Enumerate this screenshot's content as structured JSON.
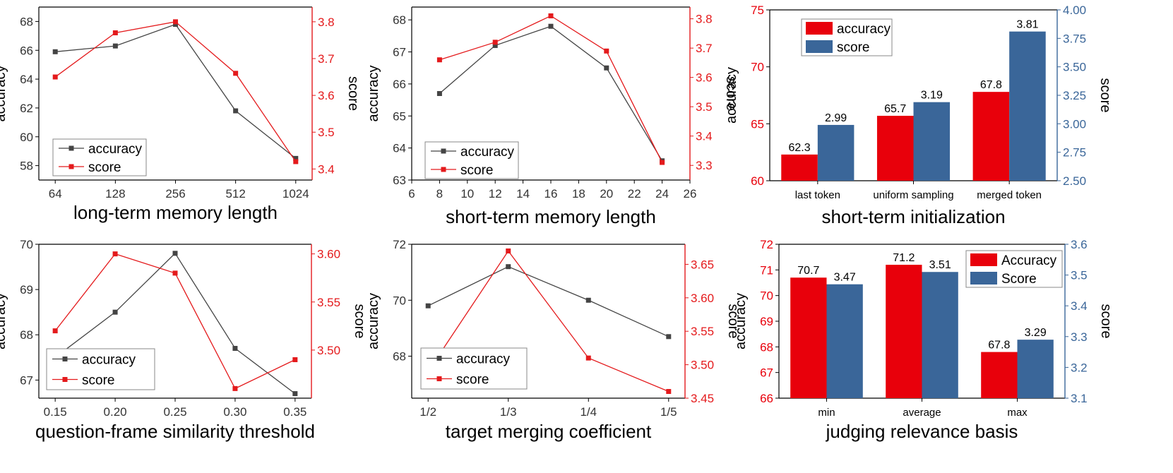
{
  "colors": {
    "accuracy_line": "#444444",
    "score_line": "#e41a1c",
    "accuracy_bar": "#e8000b",
    "score_bar": "#3a6699",
    "score_axis_red": "#e41a1c",
    "score_axis_blue": "#3a6699"
  },
  "chart_data": [
    {
      "type": "line",
      "xlabel": "long-term memory length",
      "ylabel": "accuracy",
      "y2label": "score",
      "x": [
        "64",
        "128",
        "256",
        "512",
        "1024"
      ],
      "ylim": [
        57,
        69
      ],
      "yticks": [
        58,
        60,
        62,
        64,
        66,
        68
      ],
      "y2lim": [
        3.37,
        3.84
      ],
      "y2ticks": [
        3.4,
        3.5,
        3.6,
        3.7,
        3.8
      ],
      "y2_decimals": 1,
      "series": [
        {
          "name": "accuracy",
          "axis": "left",
          "values": [
            65.9,
            66.3,
            67.8,
            61.8,
            58.5
          ]
        },
        {
          "name": "score",
          "axis": "right",
          "values": [
            3.65,
            3.77,
            3.8,
            3.66,
            3.42
          ]
        }
      ],
      "legend": "bottom-left",
      "score_axis_color": "red"
    },
    {
      "type": "line",
      "xlabel": "short-term memory length",
      "ylabel": "accuracy",
      "y2label": "score",
      "x": [
        8,
        12,
        16,
        20,
        24
      ],
      "xlim": [
        6,
        26
      ],
      "xticks": [
        6,
        8,
        10,
        12,
        14,
        16,
        18,
        20,
        22,
        24,
        26
      ],
      "ylim": [
        63,
        68.4
      ],
      "yticks": [
        63,
        64,
        65,
        66,
        67,
        68
      ],
      "y2lim": [
        3.25,
        3.84
      ],
      "y2ticks": [
        3.3,
        3.4,
        3.5,
        3.6,
        3.7,
        3.8
      ],
      "y2_decimals": 1,
      "series": [
        {
          "name": "accuracy",
          "axis": "left",
          "values": [
            65.7,
            67.2,
            67.8,
            66.5,
            63.6
          ]
        },
        {
          "name": "score",
          "axis": "right",
          "values": [
            3.66,
            3.72,
            3.81,
            3.69,
            3.31
          ]
        }
      ],
      "legend": "bottom-left",
      "score_axis_color": "red"
    },
    {
      "type": "bar",
      "xlabel": "short-term initialization",
      "ylabel": "accuracy",
      "y2label": "score",
      "categories": [
        "last token",
        "uniform sampling",
        "merged token"
      ],
      "ylim": [
        60,
        75
      ],
      "yticks": [
        60,
        65,
        70,
        75
      ],
      "y2lim": [
        2.5,
        4.0
      ],
      "y2ticks": [
        2.5,
        2.75,
        3.0,
        3.25,
        3.5,
        3.75,
        4.0
      ],
      "y2_decimals": 2,
      "series": [
        {
          "name": "accuracy",
          "axis": "left",
          "values": [
            62.3,
            65.7,
            67.8
          ],
          "labels": [
            "62.3",
            "65.7",
            "67.8"
          ]
        },
        {
          "name": "score",
          "axis": "right",
          "values": [
            2.99,
            3.19,
            3.81
          ],
          "labels": [
            "2.99",
            "3.19",
            "3.81"
          ]
        }
      ],
      "legend": "top-left",
      "score_axis_color": "blue"
    },
    {
      "type": "line",
      "xlabel": "question-frame similarity threshold",
      "ylabel": "accuracy",
      "y2label": "score",
      "x": [
        "0.15",
        "0.20",
        "0.25",
        "0.30",
        "0.35"
      ],
      "ylim": [
        66.6,
        70
      ],
      "yticks": [
        67,
        68,
        69,
        70
      ],
      "y2lim": [
        3.45,
        3.61
      ],
      "y2ticks": [
        3.5,
        3.55,
        3.6
      ],
      "y2_decimals": 2,
      "series": [
        {
          "name": "accuracy",
          "axis": "left",
          "values": [
            67.5,
            68.5,
            69.8,
            67.7,
            66.7
          ]
        },
        {
          "name": "score",
          "axis": "right",
          "values": [
            3.52,
            3.6,
            3.58,
            3.46,
            3.49
          ]
        }
      ],
      "legend": "bottom-left",
      "score_axis_color": "red"
    },
    {
      "type": "line",
      "xlabel": "target merging coefficient",
      "ylabel": "accuracy",
      "y2label": "score",
      "x": [
        "1/2",
        "1/3",
        "1/4",
        "1/5"
      ],
      "ylim": [
        66.5,
        72
      ],
      "yticks": [
        68,
        70,
        72
      ],
      "y2lim": [
        3.45,
        3.68
      ],
      "y2ticks": [
        3.45,
        3.5,
        3.55,
        3.6,
        3.65
      ],
      "y2_decimals": 2,
      "series": [
        {
          "name": "accuracy",
          "axis": "left",
          "values": [
            69.8,
            71.2,
            70.0,
            68.7
          ]
        },
        {
          "name": "score",
          "axis": "right",
          "values": [
            3.49,
            3.67,
            3.51,
            3.46
          ]
        }
      ],
      "legend": "bottom-left",
      "score_axis_color": "red"
    },
    {
      "type": "bar",
      "xlabel": "judging relevance basis",
      "ylabel": "accuracy",
      "y2label": "score",
      "categories": [
        "min",
        "average",
        "max"
      ],
      "ylim": [
        66,
        72
      ],
      "yticks": [
        66,
        67,
        68,
        69,
        70,
        71,
        72
      ],
      "y2lim": [
        3.1,
        3.6
      ],
      "y2ticks": [
        3.1,
        3.2,
        3.3,
        3.4,
        3.5,
        3.6
      ],
      "y2_decimals": 1,
      "series": [
        {
          "name": "Accuracy",
          "axis": "left",
          "values": [
            70.7,
            71.2,
            67.8
          ],
          "labels": [
            "70.7",
            "71.2",
            "67.8"
          ]
        },
        {
          "name": "Score",
          "axis": "right",
          "values": [
            3.47,
            3.51,
            3.29
          ],
          "labels": [
            "3.47",
            "3.51",
            "3.29"
          ]
        }
      ],
      "legend": "top-right",
      "score_axis_color": "blue"
    }
  ]
}
